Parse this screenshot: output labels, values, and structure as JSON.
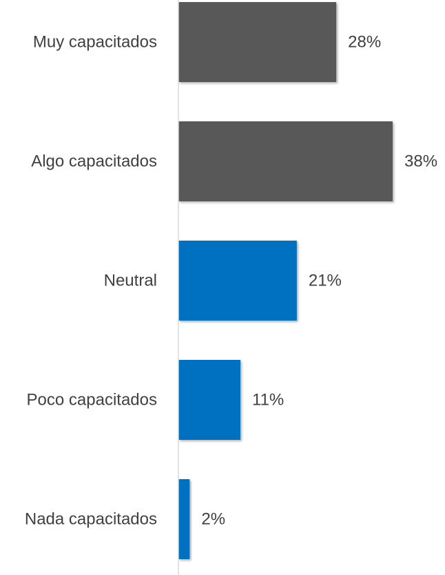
{
  "chart_data": {
    "type": "bar",
    "orientation": "horizontal",
    "categories": [
      "Muy capacitados",
      "Algo capacitados",
      "Neutral",
      "Poco capacitados",
      "Nada capacitados"
    ],
    "values": [
      28,
      38,
      21,
      11,
      2
    ],
    "value_labels": [
      "28%",
      "38%",
      "21%",
      "11%",
      "2%"
    ],
    "bar_colors": [
      "#595959",
      "#595959",
      "#0070c0",
      "#0070c0",
      "#0070c0"
    ],
    "xlim": [
      0,
      38
    ],
    "grid": false,
    "legend": "none"
  }
}
